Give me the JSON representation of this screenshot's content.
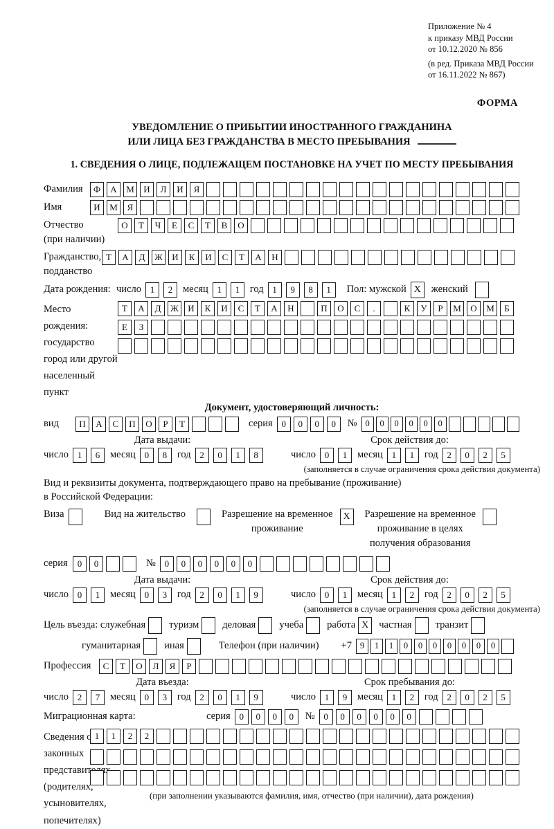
{
  "labels": {
    "day": "число",
    "month": "месяц",
    "year": "год"
  },
  "header": {
    "line1": "Приложение № 4",
    "line2": "к приказу МВД России",
    "line3": "от 10.12.2020 № 856",
    "line4": "(в ред. Приказа МВД России",
    "line5": "от 16.11.2022 № 867)",
    "forma": "ФОРМА"
  },
  "title": {
    "line1": "УВЕДОМЛЕНИЕ О ПРИБЫТИИ ИНОСТРАННОГО ГРАЖДАНИНА",
    "line2": "ИЛИ ЛИЦА БЕЗ ГРАЖДАНСТВА В МЕСТО ПРЕБЫВАНИЯ"
  },
  "section1": {
    "heading": "1. СВЕДЕНИЯ О ЛИЦЕ, ПОДЛЕЖАЩЕМ ПОСТАНОВКЕ НА УЧЕТ ПО МЕСТУ ПРЕБЫВАНИЯ"
  },
  "person": {
    "surname": {
      "label": "Фамилия",
      "value": "ФАМИЛИЯ",
      "cells": 26
    },
    "given_name": {
      "label": "Имя",
      "value": "ИМЯ",
      "cells": 26
    },
    "patronymic": {
      "label1": "Отчество",
      "label2": "(при наличии)",
      "value": "ОТЧЕСТВО",
      "cells": 24
    },
    "citizenship": {
      "label1": "Гражданство,",
      "label2": "подданство",
      "value": "ТАДЖИКИСТАН",
      "cells": 25
    }
  },
  "birth": {
    "label": "Дата рождения:",
    "date": {
      "day": "12",
      "month": "11",
      "year": "1981"
    },
    "sex_label": "Пол:",
    "male_label": "мужской",
    "male": true,
    "female_label": "женский",
    "female": false
  },
  "birthplace": {
    "label1": "Место рождения:",
    "label2": "государство",
    "label3": "город или другой",
    "label4": "населенный пункт",
    "row1": {
      "value": "ТАДЖИКИСТАН ПОС. КУРМОМБ",
      "cells": 24
    },
    "row2": {
      "value": "ЕЗ",
      "cells": 24
    },
    "row3": {
      "value": "",
      "cells": 24
    }
  },
  "identity_doc": {
    "heading": "Документ, удостоверяющий личность:",
    "kind_label": "вид",
    "kind": {
      "value": "ПАСПОРТ",
      "cells": 10
    },
    "series_label": "серия",
    "series": {
      "value": "0000",
      "cells": 4
    },
    "number_label": "№",
    "number": {
      "value": "000000",
      "cells": 11,
      "small": true
    },
    "issue_heading": "Дата выдачи:",
    "issue": {
      "day": "16",
      "month": "08",
      "year": "2018"
    },
    "expiry_heading": "Срок действия до:",
    "expiry": {
      "day": "01",
      "month": "11",
      "year": "2025"
    },
    "note": "(заполняется в случае ограничения срока действия документа)"
  },
  "residence": {
    "line1": "Вид и реквизиты документа, подтверждающего право на пребывание (проживание)",
    "line2": "в Российской Федерации:",
    "options": [
      {
        "label": "Виза",
        "checked": false
      },
      {
        "label": "Вид на жительство",
        "checked": false
      },
      {
        "label_lines": [
          "Разрешение на временное",
          "проживание"
        ],
        "checked": true
      },
      {
        "label_lines": [
          "Разрешение на временное",
          "проживание в целях",
          "получения образования"
        ],
        "checked": false
      }
    ],
    "series_label": "серия",
    "series": {
      "value": "00",
      "cells": 4
    },
    "number_label": "№",
    "number": {
      "value": "000000",
      "cells": 14
    },
    "issue_heading": "Дата выдачи:",
    "issue": {
      "day": "01",
      "month": "03",
      "year": "2019"
    },
    "expiry_heading": "Срок действия до:",
    "expiry": {
      "day": "01",
      "month": "12",
      "year": "2025"
    },
    "note": "(заполняется в случае ограничения срока действия документа)"
  },
  "visit": {
    "label": "Цель въезда:",
    "options": [
      {
        "label": "служебная",
        "checked": false
      },
      {
        "label": "туризм",
        "checked": false
      },
      {
        "label": "деловая",
        "checked": false
      },
      {
        "label": "учеба",
        "checked": false
      },
      {
        "label": "работа",
        "checked": true
      },
      {
        "label": "частная",
        "checked": false
      },
      {
        "label": "транзит",
        "checked": false
      },
      {
        "label": "гуманитарная",
        "checked": false
      },
      {
        "label": "иная",
        "checked": false
      }
    ],
    "phone_label": "Телефон (при наличии)",
    "phone_prefix": "+7",
    "phone": {
      "value": "9110000000",
      "cells": 11,
      "small": true
    },
    "profession_label": "Профессия",
    "profession": {
      "value": "СТОЛЯР",
      "cells": 25
    }
  },
  "stay": {
    "entry_heading": "Дата въезда:",
    "entry": {
      "day": "27",
      "month": "03",
      "year": "2019"
    },
    "until_heading": "Срок пребывания до:",
    "until": {
      "day": "19",
      "month": "12",
      "year": "2025"
    }
  },
  "migration_card": {
    "label": "Миграционная карта:",
    "series_label": "серия",
    "series": {
      "value": "0000",
      "cells": 4
    },
    "number_label": "№",
    "number": {
      "value": "000000",
      "cells": 10
    }
  },
  "representatives": {
    "label_lines": [
      "Сведения о",
      "законных",
      "представителях",
      "(родителях,",
      "усыновителях,",
      "попечителях)"
    ],
    "row1": {
      "value": "1122",
      "cells": 26
    },
    "row2": {
      "value": "",
      "cells": 26
    },
    "row3": {
      "value": "",
      "cells": 26
    },
    "note": "(при заполнении указываются фамилия, имя, отчество (при наличии), дата рождения)"
  }
}
